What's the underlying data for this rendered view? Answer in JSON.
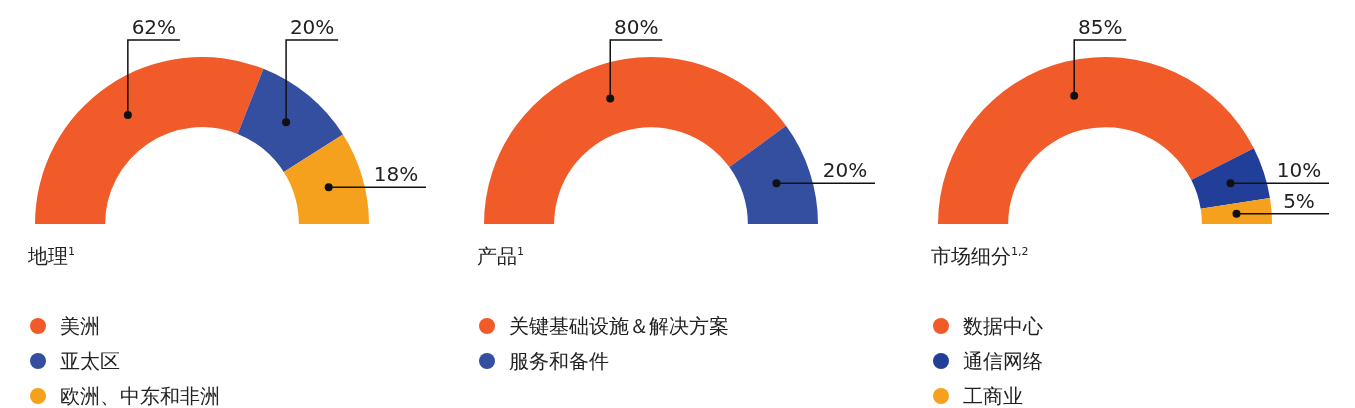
{
  "chart_data": [
    {
      "type": "donut",
      "title": "地理$^{1}$",
      "categories": [
        "美洲",
        "亚太区",
        "欧洲、中东和非洲"
      ],
      "values": [
        62,
        20,
        18
      ],
      "value_labels": [
        "62%",
        "20%",
        "18%"
      ],
      "colors": [
        "#f15a29",
        "#344ea0",
        "#f6a11e"
      ],
      "legend": "bottom"
    },
    {
      "type": "donut",
      "title": "产品$^{1}$",
      "categories": [
        "关键基础设施＆解决方案",
        "服务和备件"
      ],
      "values": [
        80,
        20
      ],
      "value_labels": [
        "80%",
        "20%"
      ],
      "colors": [
        "#f15a29",
        "#344ea0"
      ],
      "legend": "bottom"
    },
    {
      "type": "donut",
      "title": "市场细分$^{1,2}$",
      "categories": [
        "数据中心",
        "通信网络",
        "工商业"
      ],
      "values": [
        85,
        10,
        5
      ],
      "value_labels": [
        "85%",
        "10%",
        "5%"
      ],
      "colors": [
        "#f15a29",
        "#213e98",
        "#f6a11e"
      ],
      "legend": "bottom"
    }
  ]
}
